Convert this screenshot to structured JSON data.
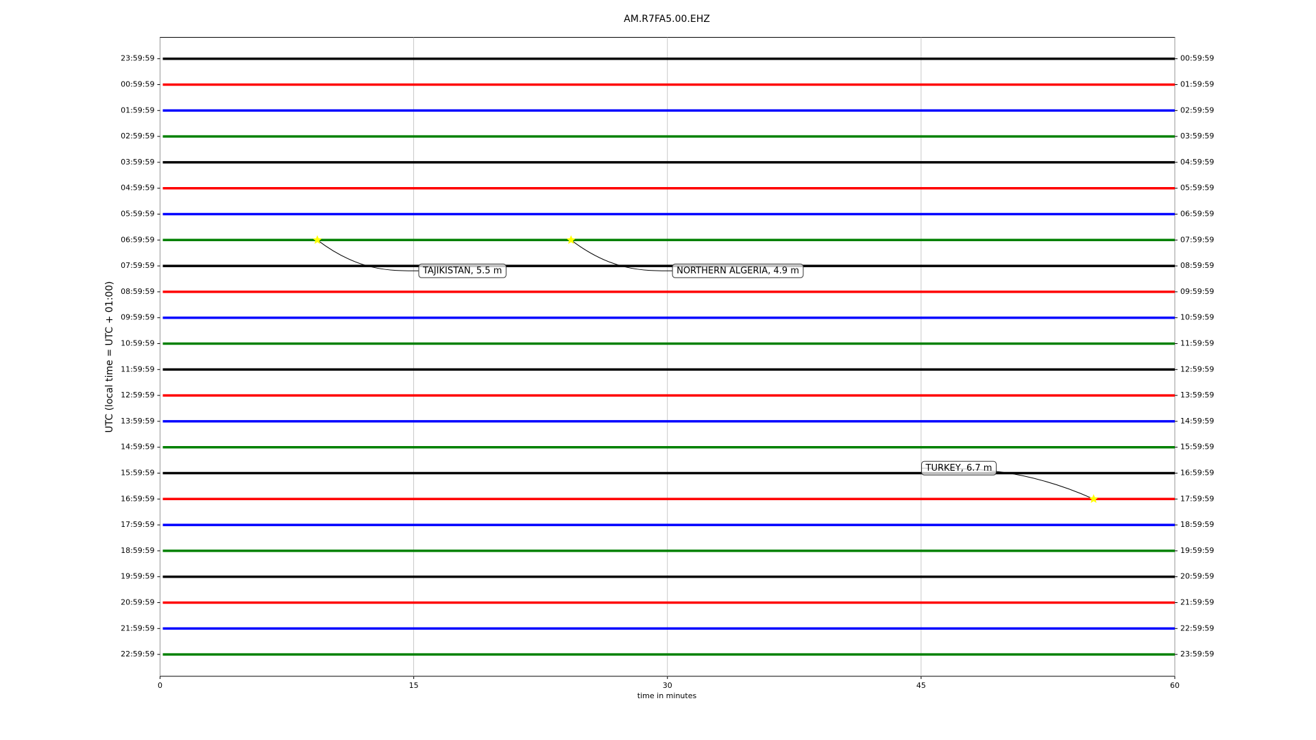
{
  "chart_data": {
    "type": "dayplot",
    "title": "AM.R7FA5.00.EHZ",
    "x_label": "time in minutes",
    "y_label": "UTC (local time = UTC + 01:00)",
    "xlim": [
      0,
      60
    ],
    "xticks": [
      0,
      15,
      30,
      45,
      60
    ],
    "grid": true,
    "colors": [
      "#000000",
      "#ff0000",
      "#0000ff",
      "#008000"
    ],
    "categories": [
      "23:59:59",
      "00:59:59",
      "01:59:59",
      "02:59:59",
      "03:59:59",
      "04:59:59",
      "05:59:59",
      "06:59:59",
      "07:59:59",
      "08:59:59",
      "09:59:59",
      "10:59:59",
      "11:59:59",
      "12:59:59",
      "13:59:59",
      "14:59:59",
      "15:59:59",
      "16:59:59",
      "17:59:59",
      "18:59:59",
      "19:59:59",
      "20:59:59",
      "21:59:59",
      "22:59:59"
    ],
    "right_labels": [
      "00:59:59",
      "01:59:59",
      "02:59:59",
      "03:59:59",
      "04:59:59",
      "05:59:59",
      "06:59:59",
      "07:59:59",
      "08:59:59",
      "09:59:59",
      "10:59:59",
      "11:59:59",
      "12:59:59",
      "13:59:59",
      "14:59:59",
      "15:59:59",
      "16:59:59",
      "17:59:59",
      "18:59:59",
      "19:59:59",
      "20:59:59",
      "21:59:59",
      "22:59:59",
      "23:59:59"
    ],
    "events": [
      {
        "label": "TAJIKISTAN, 5.5 m",
        "x": 9.3,
        "row": "06:59:59"
      },
      {
        "label": "NORTHERN ALGERIA, 4.9 m",
        "x": 24.3,
        "row": "06:59:59"
      },
      {
        "label": "TURKEY, 6.7 m",
        "x": 55.2,
        "row": "16:59:59"
      }
    ]
  }
}
